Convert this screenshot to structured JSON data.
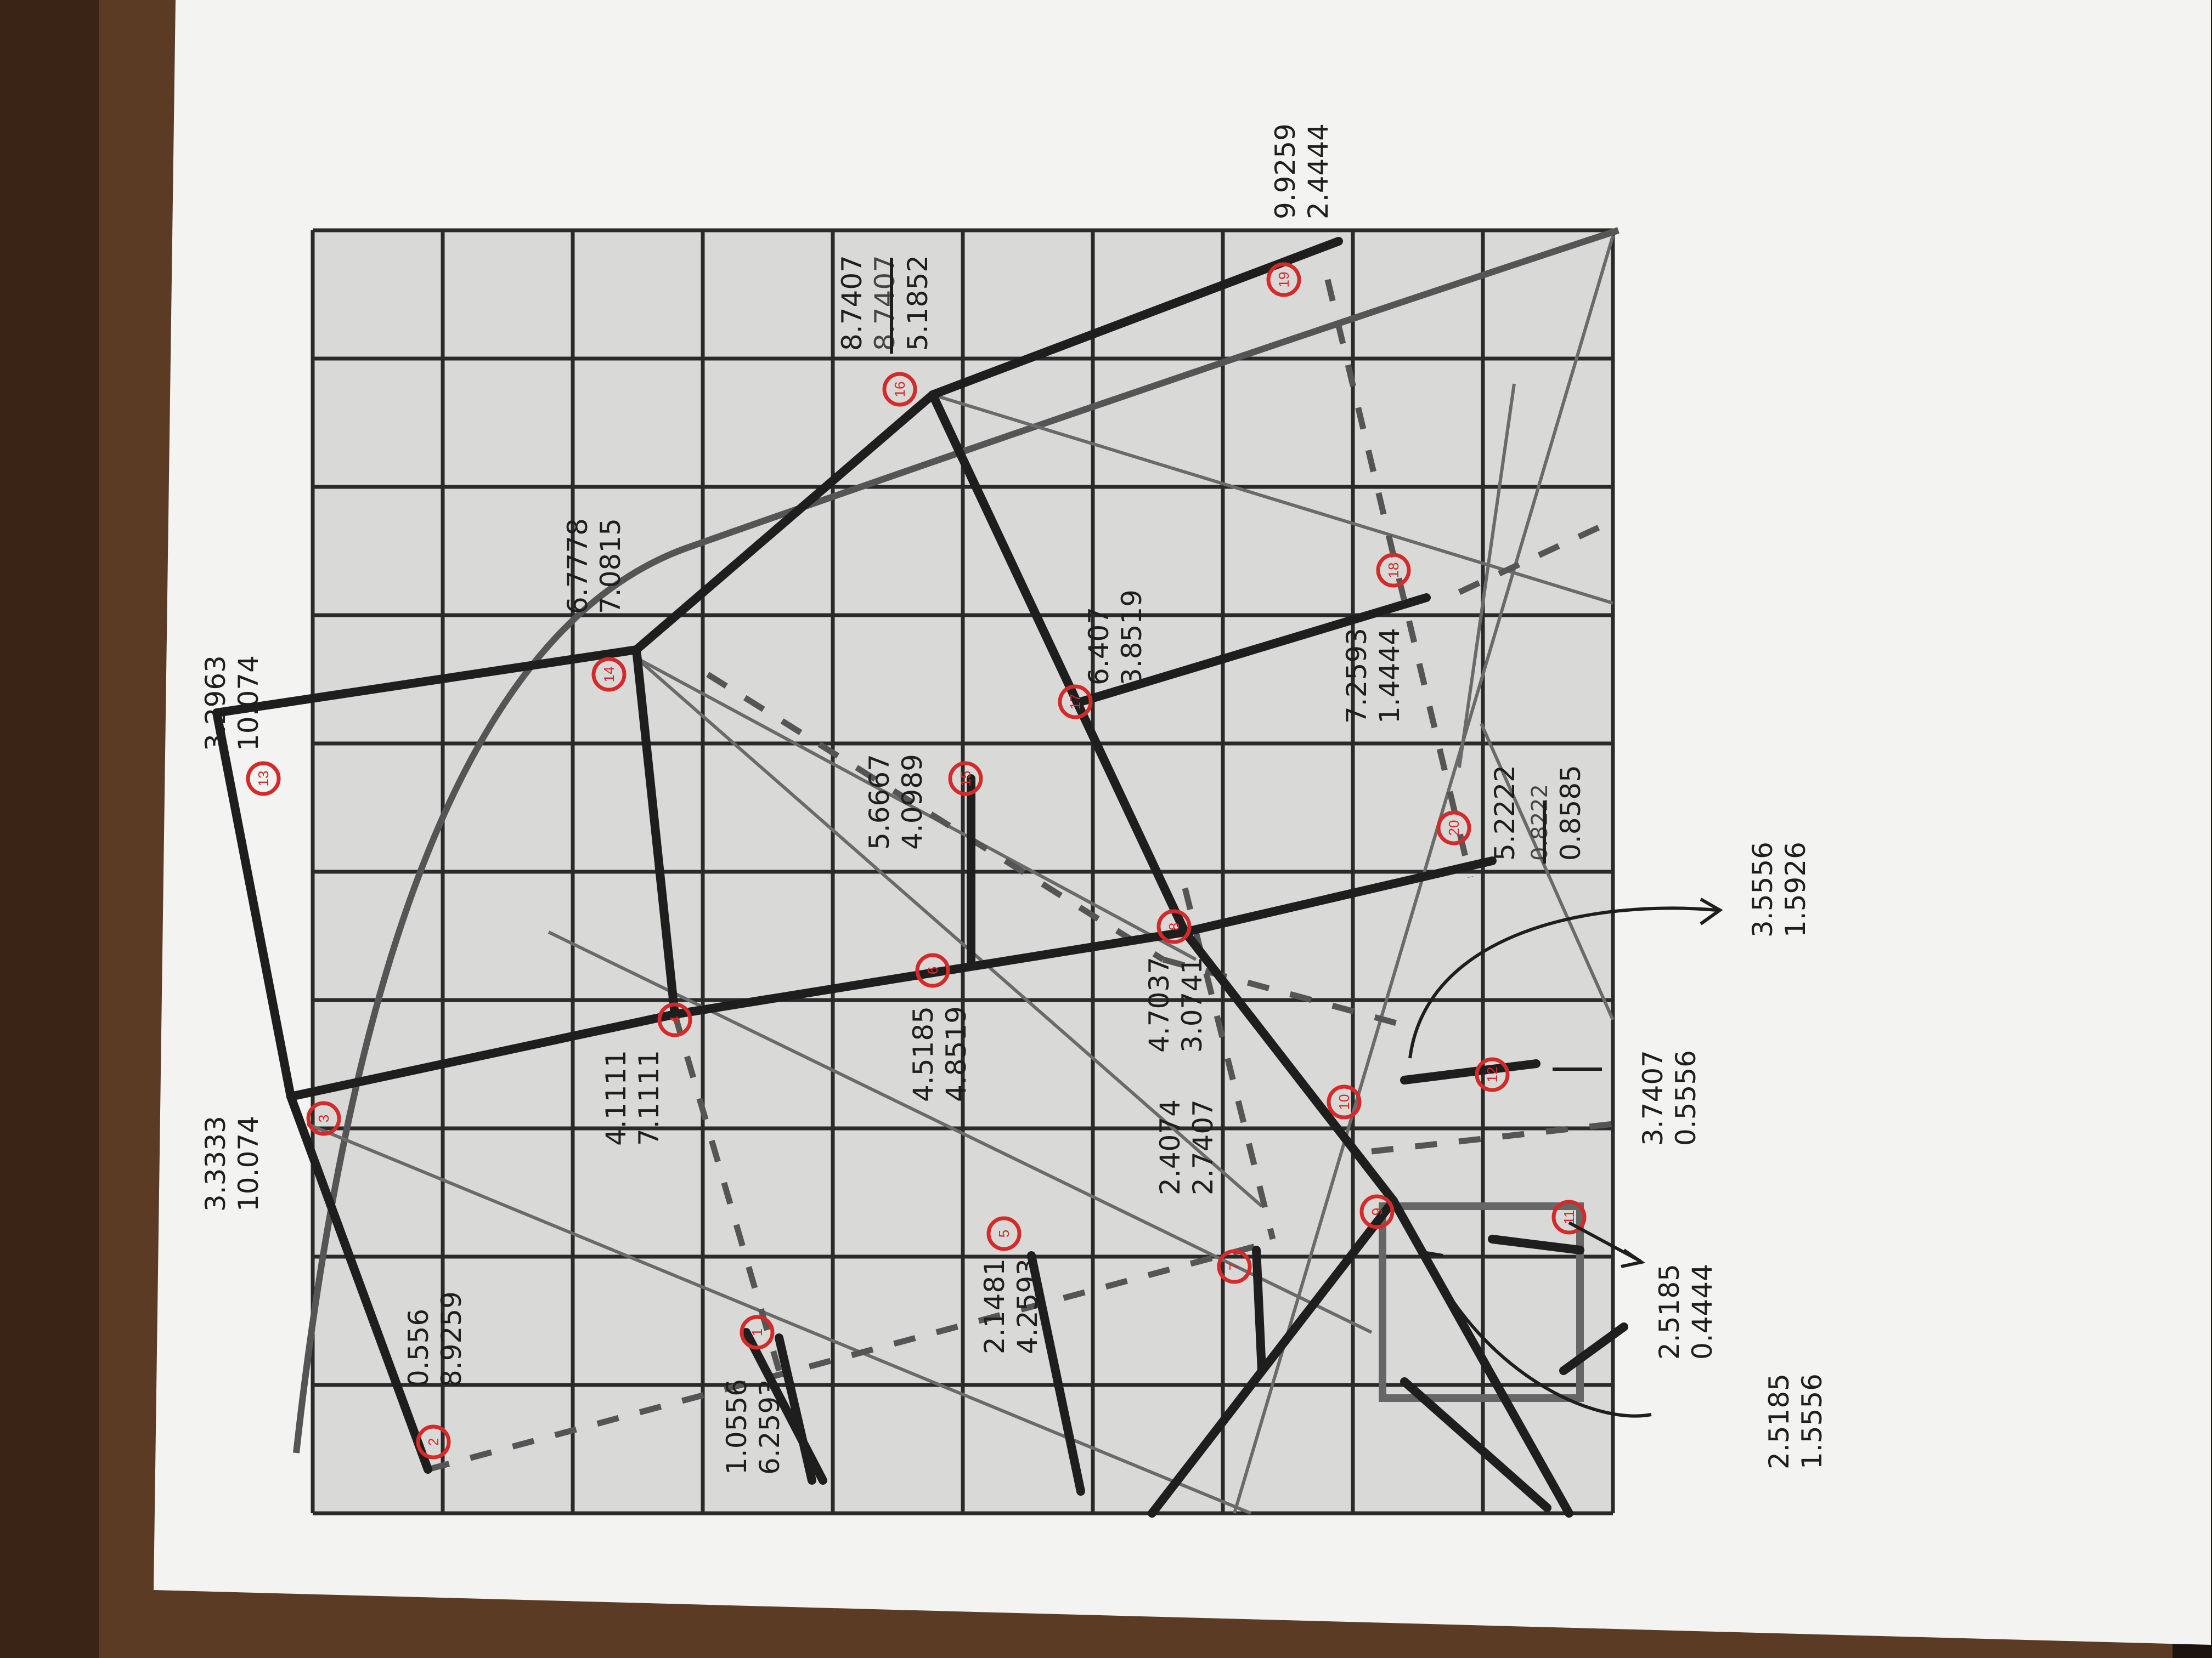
{
  "colors": {
    "table": "#5c3b24",
    "table_dark": "#2a1a10",
    "paper": "#f3f3f1",
    "grid_fill": "#d9d9d7",
    "grid_line": "#2a2a2a",
    "ink": "#1e1e1e",
    "circle_red": "#d42a2a"
  },
  "vertices": [
    {
      "n": "1",
      "a": "1.0556",
      "b": "6.2593"
    },
    {
      "n": "2",
      "a": "0.556",
      "b": "8.9259"
    },
    {
      "n": "3",
      "a": "3.3333",
      "b": "10.074"
    },
    {
      "n": "4",
      "a": "4.1111",
      "b": "7.1111"
    },
    {
      "n": "5",
      "a": "2.1481",
      "b": "4.2593"
    },
    {
      "n": "6",
      "a": "4.5185",
      "b": "4.8519"
    },
    {
      "n": "7",
      "a": "2.4074",
      "b": "2.7407"
    },
    {
      "n": "8",
      "a": "4.7037",
      "b": "3.0741"
    },
    {
      "n": "9",
      "a": "2.5185",
      "b": "0.4444"
    },
    {
      "n": "10",
      "a": "3.7407",
      "b": "0.5556"
    },
    {
      "n": "11",
      "a": "2.5185",
      "b": "1.5556"
    },
    {
      "n": "12",
      "a": "3.5556",
      "b": "1.5926"
    },
    {
      "n": "13",
      "a": "3.2963",
      "b": "10.074"
    },
    {
      "n": "14",
      "a": "6.7778",
      "b": "7.0815"
    },
    {
      "n": "15",
      "a": "5.6667",
      "b": "4.0989"
    },
    {
      "n": "16",
      "a": "8.7407",
      "b": "5.1852"
    },
    {
      "n": "17",
      "a": "6.407",
      "b": "3.8519"
    },
    {
      "n": "18",
      "a": "7.2593",
      "b": "1.4444"
    },
    {
      "n": "19",
      "a": "9.9259",
      "b": "2.4444"
    },
    {
      "n": "20",
      "a": "5.2222",
      "b": "0.8585"
    }
  ],
  "strikeouts": [
    "8.7407",
    "0.8222"
  ]
}
